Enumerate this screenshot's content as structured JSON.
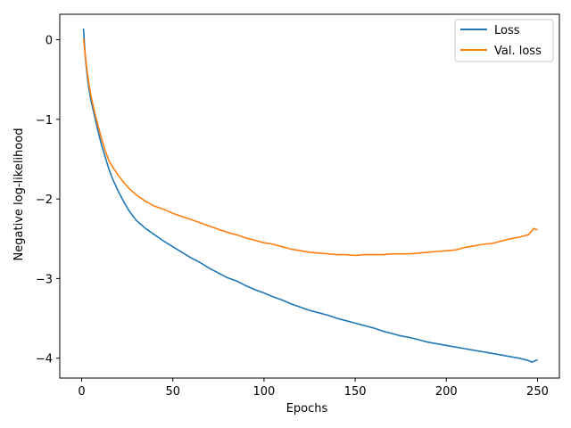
{
  "chart_data": {
    "type": "line",
    "xlabel": "Epochs",
    "ylabel": "Negative log-likelihood",
    "xlim": [
      -12,
      262
    ],
    "ylim": [
      -4.25,
      0.32
    ],
    "xticks": [
      0,
      50,
      100,
      150,
      200,
      250
    ],
    "yticks": [
      0,
      -1,
      -2,
      -3,
      -4
    ],
    "ytick_labels": [
      "0",
      "−1",
      "−2",
      "−3",
      "−4"
    ],
    "grid": false,
    "legend_position": "top-right",
    "series": [
      {
        "name": "Loss",
        "color": "#1f77b4",
        "points": [
          [
            1,
            0.14
          ],
          [
            2,
            -0.22
          ],
          [
            3,
            -0.45
          ],
          [
            4,
            -0.62
          ],
          [
            5,
            -0.75
          ],
          [
            7,
            -0.95
          ],
          [
            9,
            -1.15
          ],
          [
            11,
            -1.33
          ],
          [
            13,
            -1.48
          ],
          [
            15,
            -1.63
          ],
          [
            17,
            -1.75
          ],
          [
            20,
            -1.9
          ],
          [
            23,
            -2.03
          ],
          [
            26,
            -2.15
          ],
          [
            30,
            -2.27
          ],
          [
            35,
            -2.37
          ],
          [
            40,
            -2.45
          ],
          [
            45,
            -2.53
          ],
          [
            50,
            -2.6
          ],
          [
            55,
            -2.67
          ],
          [
            60,
            -2.74
          ],
          [
            65,
            -2.8
          ],
          [
            70,
            -2.87
          ],
          [
            75,
            -2.93
          ],
          [
            80,
            -2.99
          ],
          [
            85,
            -3.03
          ],
          [
            90,
            -3.09
          ],
          [
            95,
            -3.14
          ],
          [
            100,
            -3.18
          ],
          [
            105,
            -3.23
          ],
          [
            110,
            -3.27
          ],
          [
            115,
            -3.32
          ],
          [
            120,
            -3.36
          ],
          [
            125,
            -3.4
          ],
          [
            130,
            -3.43
          ],
          [
            135,
            -3.46
          ],
          [
            140,
            -3.5
          ],
          [
            145,
            -3.53
          ],
          [
            150,
            -3.56
          ],
          [
            155,
            -3.59
          ],
          [
            160,
            -3.62
          ],
          [
            165,
            -3.66
          ],
          [
            170,
            -3.69
          ],
          [
            175,
            -3.72
          ],
          [
            180,
            -3.74
          ],
          [
            185,
            -3.77
          ],
          [
            190,
            -3.8
          ],
          [
            195,
            -3.82
          ],
          [
            200,
            -3.84
          ],
          [
            205,
            -3.86
          ],
          [
            210,
            -3.88
          ],
          [
            215,
            -3.9
          ],
          [
            220,
            -3.92
          ],
          [
            225,
            -3.94
          ],
          [
            230,
            -3.96
          ],
          [
            235,
            -3.98
          ],
          [
            240,
            -4.0
          ],
          [
            245,
            -4.03
          ],
          [
            247,
            -4.05
          ],
          [
            250,
            -4.02
          ]
        ]
      },
      {
        "name": "Val. loss",
        "color": "#ff7f0e",
        "points": [
          [
            1,
            0.02
          ],
          [
            2,
            -0.2
          ],
          [
            3,
            -0.4
          ],
          [
            4,
            -0.56
          ],
          [
            5,
            -0.69
          ],
          [
            7,
            -0.9
          ],
          [
            9,
            -1.08
          ],
          [
            11,
            -1.25
          ],
          [
            13,
            -1.4
          ],
          [
            15,
            -1.52
          ],
          [
            17,
            -1.6
          ],
          [
            20,
            -1.7
          ],
          [
            23,
            -1.79
          ],
          [
            26,
            -1.87
          ],
          [
            30,
            -1.95
          ],
          [
            35,
            -2.03
          ],
          [
            40,
            -2.09
          ],
          [
            45,
            -2.13
          ],
          [
            50,
            -2.18
          ],
          [
            55,
            -2.22
          ],
          [
            60,
            -2.26
          ],
          [
            65,
            -2.3
          ],
          [
            70,
            -2.34
          ],
          [
            75,
            -2.38
          ],
          [
            80,
            -2.42
          ],
          [
            85,
            -2.45
          ],
          [
            90,
            -2.49
          ],
          [
            95,
            -2.52
          ],
          [
            100,
            -2.55
          ],
          [
            105,
            -2.57
          ],
          [
            110,
            -2.6
          ],
          [
            115,
            -2.63
          ],
          [
            120,
            -2.65
          ],
          [
            125,
            -2.67
          ],
          [
            130,
            -2.68
          ],
          [
            135,
            -2.69
          ],
          [
            140,
            -2.7
          ],
          [
            145,
            -2.7
          ],
          [
            150,
            -2.71
          ],
          [
            155,
            -2.7
          ],
          [
            160,
            -2.7
          ],
          [
            165,
            -2.7
          ],
          [
            170,
            -2.69
          ],
          [
            175,
            -2.69
          ],
          [
            180,
            -2.69
          ],
          [
            185,
            -2.68
          ],
          [
            190,
            -2.67
          ],
          [
            195,
            -2.66
          ],
          [
            200,
            -2.65
          ],
          [
            205,
            -2.64
          ],
          [
            210,
            -2.61
          ],
          [
            215,
            -2.59
          ],
          [
            220,
            -2.57
          ],
          [
            225,
            -2.56
          ],
          [
            230,
            -2.53
          ],
          [
            235,
            -2.5
          ],
          [
            240,
            -2.48
          ],
          [
            245,
            -2.45
          ],
          [
            248,
            -2.37
          ],
          [
            250,
            -2.39
          ]
        ]
      }
    ]
  }
}
